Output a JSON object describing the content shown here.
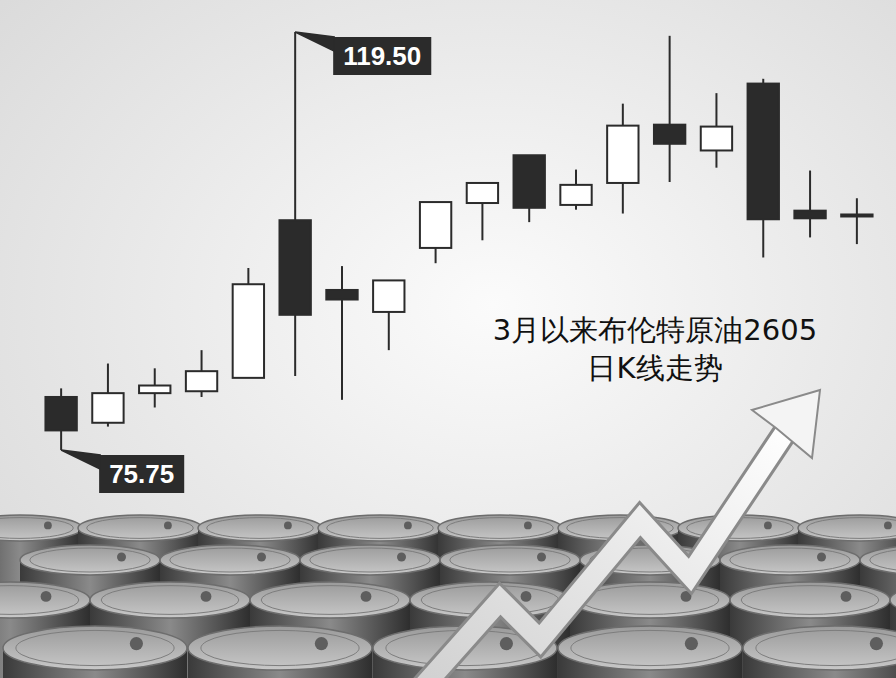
{
  "chart_data": {
    "type": "candlestick",
    "title": "3月以来布伦特原油2605日K线走势",
    "categories": [
      null,
      null,
      null,
      null,
      null,
      null,
      null,
      null,
      null,
      null,
      null,
      null,
      null,
      null,
      null,
      null,
      null,
      null
    ],
    "open": [
      81.3,
      78.6,
      81.7,
      81.9,
      83.3,
      99.8,
      92.5,
      90.2,
      96.9,
      101.6,
      106.6,
      101.4,
      103.7,
      109.8,
      107.1,
      114.1,
      100.8,
      100.3
    ],
    "high": [
      82.2,
      84.8,
      84.3,
      86.2,
      94.8,
      119.5,
      95.0,
      93.5,
      101.7,
      103.7,
      106.6,
      105.1,
      112.0,
      119.1,
      113.1,
      114.6,
      105.0,
      102.1
    ],
    "low": [
      75.75,
      78.2,
      80.2,
      81.3,
      83.3,
      83.5,
      81.0,
      86.2,
      95.3,
      97.7,
      99.6,
      100.9,
      100.5,
      103.8,
      105.3,
      95.9,
      98.0,
      97.3
    ],
    "close": [
      77.8,
      81.7,
      82.5,
      84.0,
      93.1,
      89.9,
      91.5,
      93.5,
      101.7,
      103.7,
      101.1,
      103.5,
      109.7,
      107.8,
      109.6,
      99.9,
      100.0,
      100.4
    ],
    "ylim": [
      75.75,
      119.5
    ],
    "yticks": [],
    "tick_labels": false,
    "grid": false,
    "color": "#2b2b2b",
    "annotations": [
      {
        "x": 5,
        "y": 119.5,
        "text": "119.50"
      },
      {
        "x": 0,
        "y": 75.75,
        "text": "75.75"
      }
    ]
  }
}
